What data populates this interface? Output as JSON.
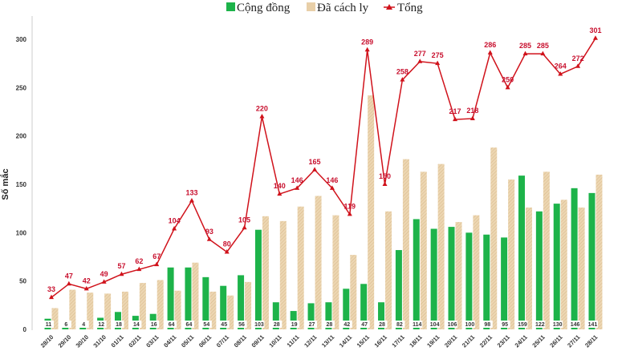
{
  "chart_data": {
    "type": "bar",
    "title": "",
    "xlabel": "",
    "ylabel": "Số mắc",
    "ylim": [
      0,
      300
    ],
    "yticks": [
      0,
      50,
      100,
      150,
      200,
      250,
      300
    ],
    "legend_position": "top-center",
    "categories": [
      "28/10",
      "29/10",
      "30/10",
      "31/10",
      "01/11",
      "02/11",
      "03/11",
      "04/11",
      "05/11",
      "06/11",
      "07/11",
      "08/11",
      "09/11",
      "10/11",
      "11/11",
      "12/11",
      "13/11",
      "14/11",
      "15/11",
      "16/11",
      "17/11",
      "18/11",
      "19/11",
      "20/11",
      "21/11",
      "22/11",
      "23/11",
      "24/11",
      "25/11",
      "26/11",
      "27/11",
      "28/11"
    ],
    "series": [
      {
        "name": "Cộng đồng",
        "kind": "bar",
        "color": "#1db34a",
        "values": [
          11,
          6,
          4,
          12,
          18,
          14,
          16,
          64,
          64,
          54,
          45,
          56,
          103,
          28,
          19,
          27,
          28,
          42,
          47,
          28,
          82,
          114,
          104,
          106,
          100,
          98,
          95,
          159,
          122,
          130,
          146,
          141
        ]
      },
      {
        "name": "Đã cách ly",
        "kind": "bar",
        "color": "#e8cfa8",
        "values": [
          22,
          41,
          38,
          37,
          39,
          48,
          51,
          40,
          69,
          39,
          35,
          49,
          117,
          112,
          127,
          138,
          118,
          77,
          242,
          122,
          176,
          163,
          171,
          111,
          118,
          188,
          155,
          126,
          163,
          134,
          126,
          160
        ]
      },
      {
        "name": "Tổng",
        "kind": "line",
        "color": "#d0121b",
        "values": [
          33,
          47,
          42,
          49,
          57,
          62,
          67,
          104,
          133,
          93,
          80,
          105,
          220,
          140,
          146,
          165,
          146,
          119,
          289,
          150,
          258,
          277,
          275,
          217,
          218,
          286,
          250,
          285,
          285,
          264,
          272,
          301
        ]
      }
    ]
  }
}
